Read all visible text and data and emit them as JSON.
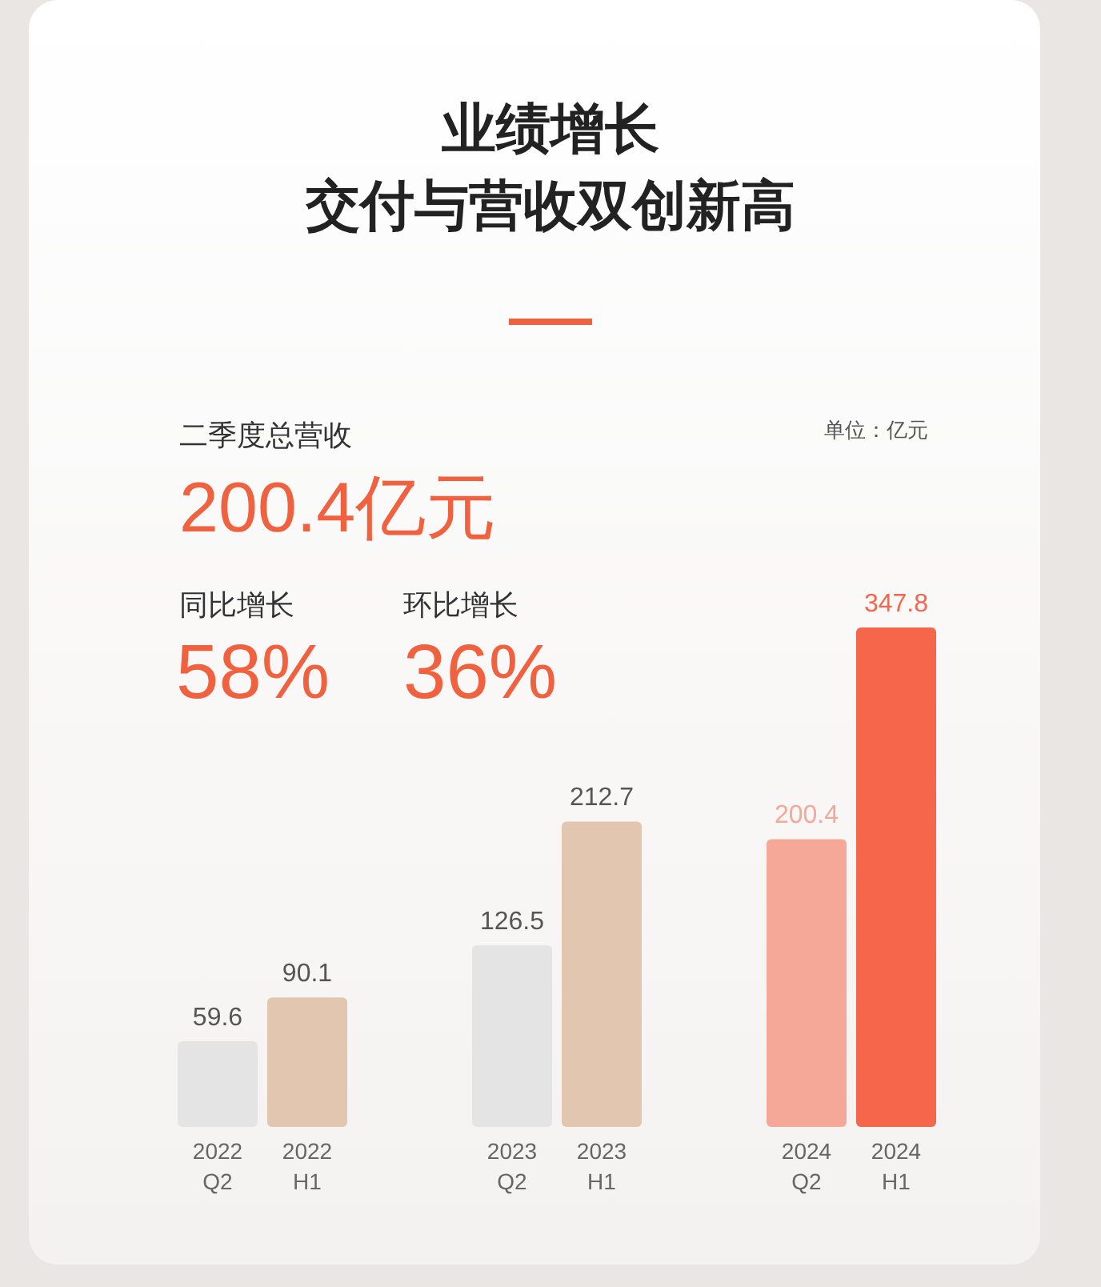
{
  "chart_data": {
    "type": "bar",
    "title": "业绩增长",
    "subtitle": "交付与营收双创新高",
    "categories": [
      "2022\nQ2",
      "2022\nH1",
      "2023\nQ2",
      "2023\nH1",
      "2024\nQ2",
      "2024\nH1"
    ],
    "values": [
      59.6,
      90.1,
      126.5,
      212.7,
      200.4,
      347.8
    ],
    "colors": [
      "#e4e4e4",
      "#e2c6b0",
      "#e4e4e4",
      "#e2c6b0",
      "#f5a898",
      "#f5664a"
    ],
    "data_labels": true,
    "annotations": [
      "二季度总营收",
      "200.4亿元",
      "同比增长",
      "58%",
      "环比增长",
      "36%",
      "单位：亿元"
    ]
  }
}
